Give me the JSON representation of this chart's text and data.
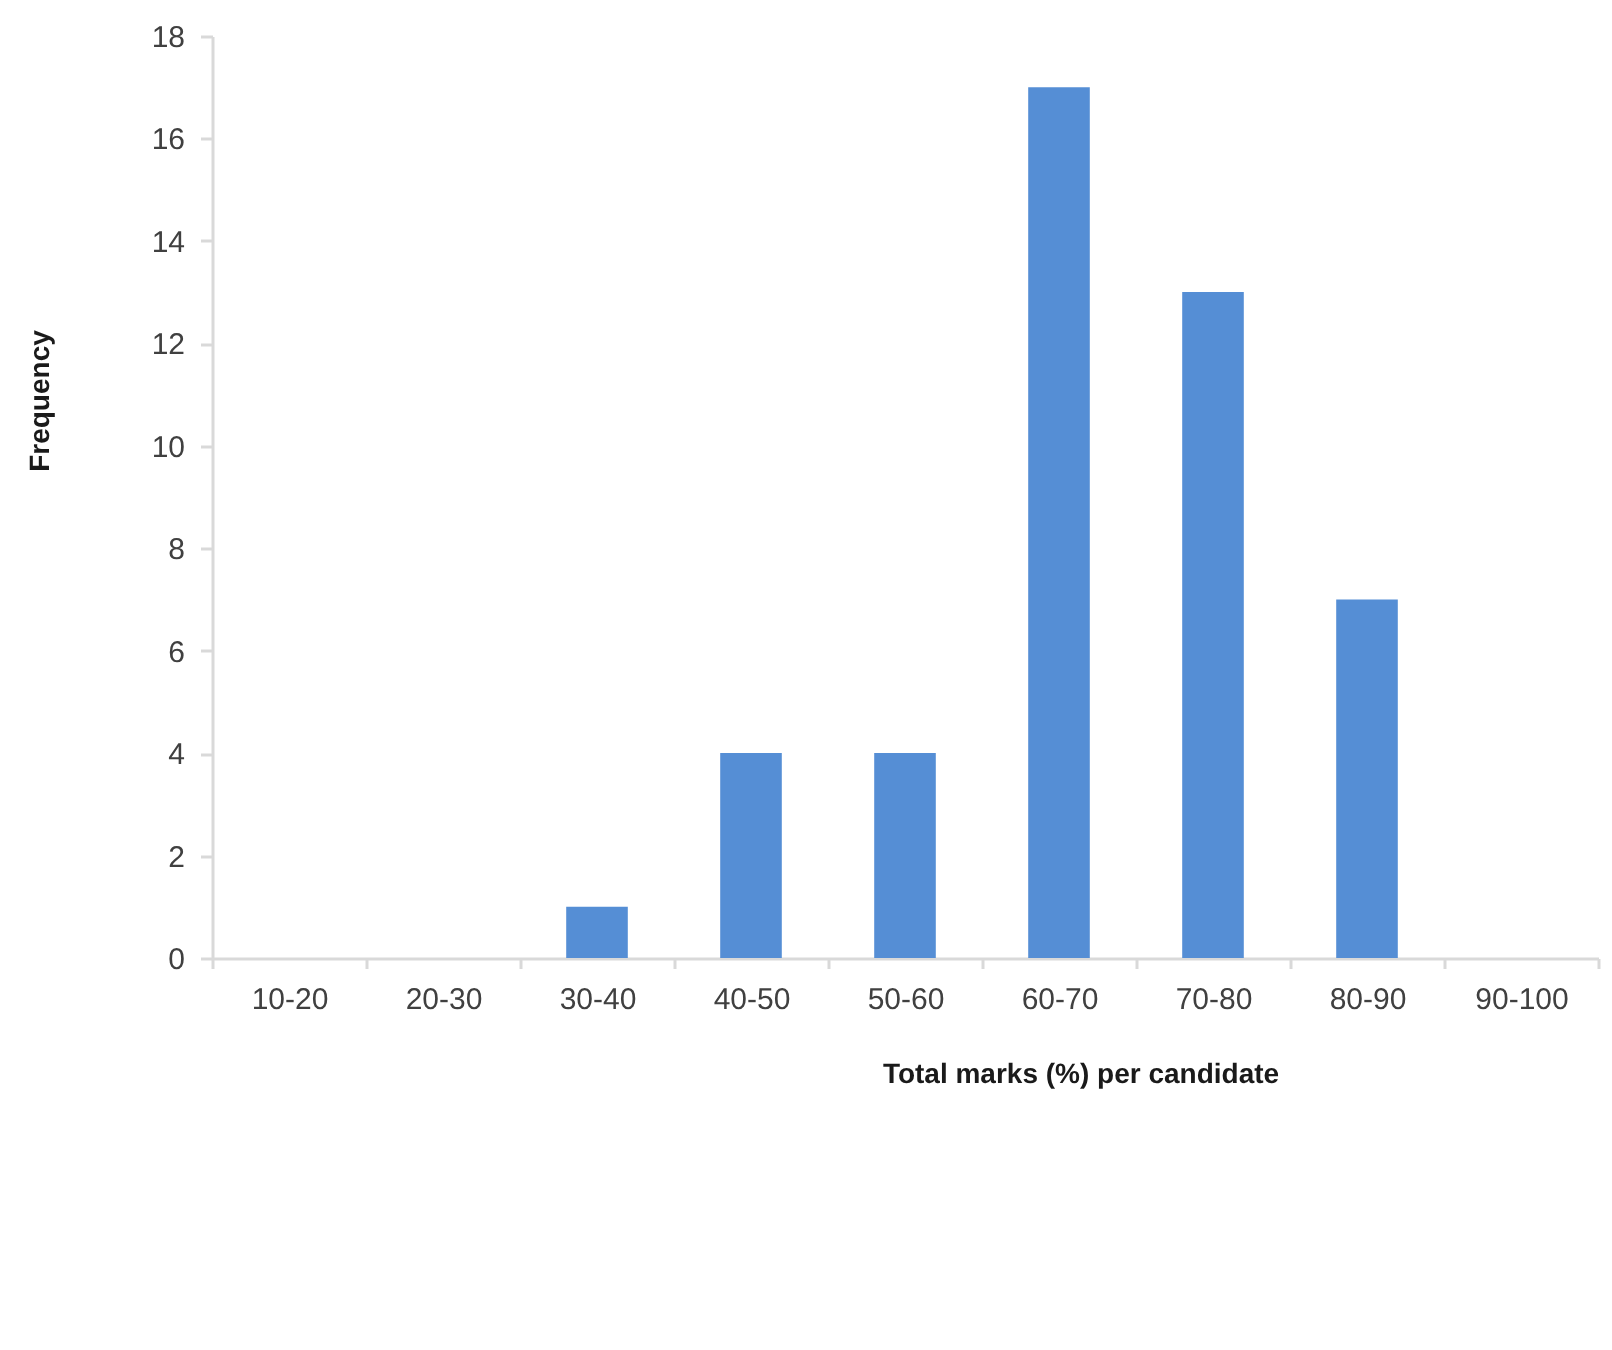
{
  "chart_data": {
    "type": "bar",
    "xlabel": "Total marks (%) per candidate",
    "ylabel": "Frequency",
    "categories": [
      "10-20",
      "20-30",
      "30-40",
      "40-50",
      "50-60",
      "60-70",
      "70-80",
      "80-90",
      "90-100"
    ],
    "values": [
      0,
      0,
      1,
      4,
      4,
      17,
      13,
      7,
      0
    ],
    "color": "#558ed5",
    "ylim": [
      0,
      18
    ],
    "yticks": [
      0,
      2,
      4,
      6,
      8,
      10,
      12,
      14,
      16,
      18
    ],
    "grid": false
  }
}
